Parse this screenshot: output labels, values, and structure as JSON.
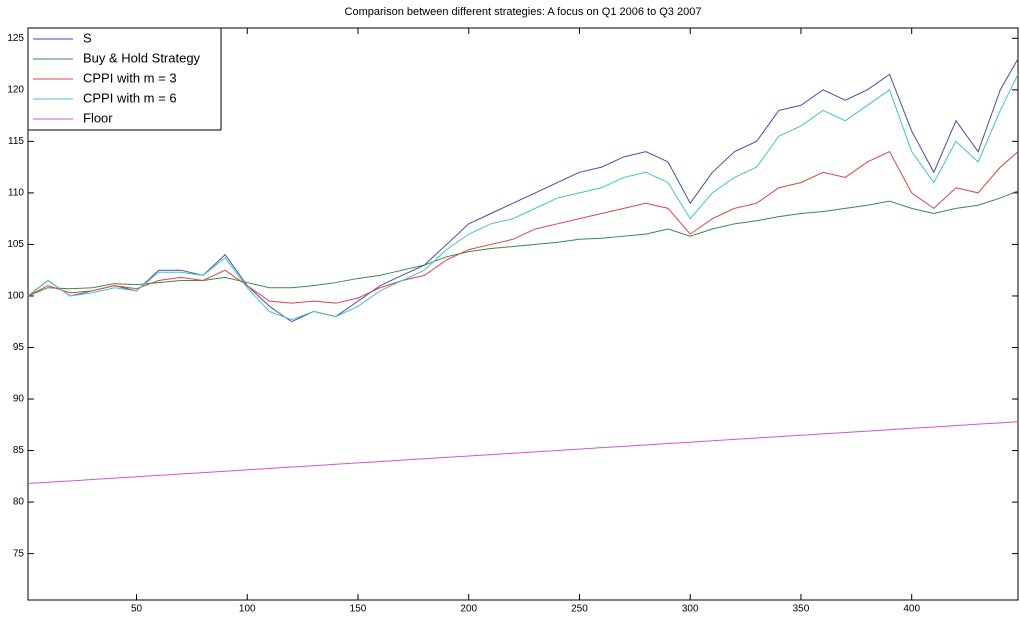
{
  "chart_data": {
    "type": "line",
    "title": "Comparison between different strategies: A focus on Q1 2006 to Q3 2007",
    "x": [
      1,
      10,
      20,
      30,
      40,
      50,
      60,
      70,
      80,
      90,
      100,
      110,
      120,
      130,
      140,
      150,
      160,
      170,
      180,
      190,
      200,
      210,
      220,
      230,
      240,
      250,
      260,
      270,
      280,
      290,
      300,
      310,
      320,
      330,
      340,
      350,
      360,
      370,
      380,
      390,
      400,
      410,
      420,
      430,
      440,
      448
    ],
    "series": [
      {
        "name": "S",
        "color": "#4b4ba8",
        "values": [
          100,
          101.5,
          100,
          100.5,
          101,
          100.5,
          102.5,
          102.5,
          102,
          104,
          101,
          99,
          97.5,
          98.5,
          98,
          99.5,
          101,
          102,
          103,
          105,
          107,
          108,
          109,
          110,
          111,
          112,
          112.5,
          113.5,
          114,
          113,
          109,
          112,
          114,
          115,
          118,
          118.5,
          120,
          119,
          120,
          121.5,
          116,
          112,
          117,
          114,
          120,
          123
        ]
      },
      {
        "name": "Buy & Hold Strategy",
        "color": "#3a8a4a",
        "values": [
          100,
          100.8,
          100.7,
          100.8,
          101.2,
          101.1,
          101.3,
          101.5,
          101.5,
          101.8,
          101.3,
          100.8,
          100.8,
          101,
          101.3,
          101.7,
          102,
          102.5,
          103,
          103.8,
          104.3,
          104.6,
          104.8,
          105,
          105.2,
          105.5,
          105.6,
          105.8,
          106,
          106.5,
          105.8,
          106.5,
          107,
          107.3,
          107.7,
          108,
          108.2,
          108.5,
          108.8,
          109.2,
          108.5,
          108,
          108.5,
          108.8,
          109.5,
          110.2
        ]
      },
      {
        "name": "CPPI with m = 3",
        "color": "#e04444",
        "values": [
          100,
          101,
          100.3,
          100.5,
          101,
          100.7,
          101.5,
          101.8,
          101.5,
          102.5,
          101,
          99.5,
          99.3,
          99.5,
          99.3,
          99.8,
          100.8,
          101.5,
          102,
          103.5,
          104.5,
          105,
          105.5,
          106.5,
          107,
          107.5,
          108,
          108.5,
          109,
          108.5,
          106,
          107.5,
          108.5,
          109,
          110.5,
          111,
          112,
          111.5,
          113,
          114,
          110,
          108.5,
          110.5,
          110,
          112.5,
          114
        ]
      },
      {
        "name": "CPPI with m = 6",
        "color": "#45c4c4",
        "values": [
          100,
          101.5,
          100,
          100.3,
          100.8,
          100.5,
          102.3,
          102.3,
          102,
          103.7,
          100.8,
          98.5,
          97.7,
          98.5,
          98,
          99,
          100.5,
          101.5,
          102.5,
          104.5,
          106,
          107,
          107.5,
          108.5,
          109.5,
          110,
          110.5,
          111.5,
          112,
          111,
          107.5,
          110,
          111.5,
          112.5,
          115.5,
          116.5,
          118,
          117,
          118.5,
          120,
          114,
          111,
          115,
          113,
          118,
          121.5
        ]
      },
      {
        "name": "Floor",
        "color": "#d055d0",
        "values": [
          81.8,
          81.92,
          82.05,
          82.19,
          82.32,
          82.46,
          82.59,
          82.73,
          82.86,
          82.99,
          83.13,
          83.26,
          83.4,
          83.53,
          83.67,
          83.8,
          83.93,
          84.07,
          84.2,
          84.34,
          84.47,
          84.6,
          84.74,
          84.87,
          85.01,
          85.14,
          85.28,
          85.41,
          85.54,
          85.68,
          85.81,
          85.95,
          86.08,
          86.22,
          86.35,
          86.48,
          86.62,
          86.75,
          86.89,
          87.02,
          87.16,
          87.29,
          87.42,
          87.56,
          87.69,
          87.8
        ]
      }
    ],
    "xlim": [
      1,
      448
    ],
    "xticks": [
      50,
      100,
      150,
      200,
      250,
      300,
      350,
      400
    ],
    "ylim": [
      70.5,
      126
    ],
    "yticks": [
      75,
      80,
      85,
      90,
      95,
      100,
      105,
      110,
      115,
      120,
      125
    ],
    "legend": "upper left"
  }
}
